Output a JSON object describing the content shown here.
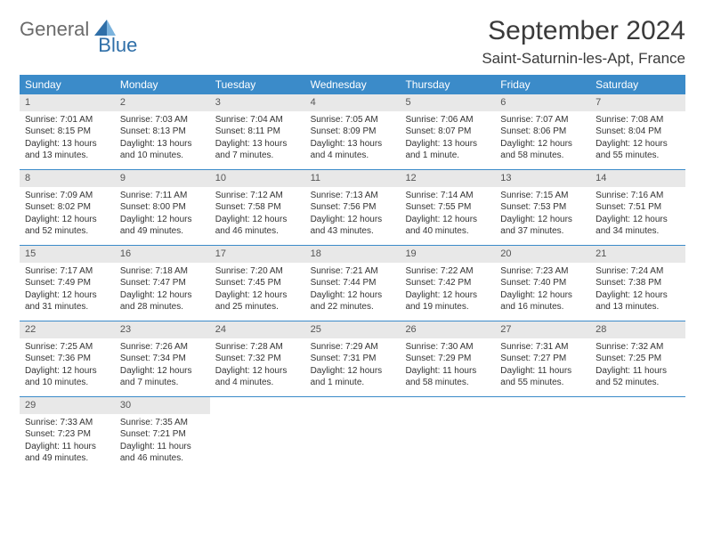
{
  "brand": {
    "part1": "General",
    "part2": "Blue"
  },
  "title": "September 2024",
  "location": "Saint-Saturnin-les-Apt, France",
  "colors": {
    "header_bg": "#3b8bc9",
    "header_text": "#ffffff",
    "daynum_bg": "#e8e8e8",
    "border": "#3b8bc9",
    "brand_gray": "#6b6b6b",
    "brand_blue": "#2f6fa8"
  },
  "weekdays": [
    "Sunday",
    "Monday",
    "Tuesday",
    "Wednesday",
    "Thursday",
    "Friday",
    "Saturday"
  ],
  "weeks": [
    [
      {
        "n": "1",
        "sr": "Sunrise: 7:01 AM",
        "ss": "Sunset: 8:15 PM",
        "d1": "Daylight: 13 hours",
        "d2": "and 13 minutes."
      },
      {
        "n": "2",
        "sr": "Sunrise: 7:03 AM",
        "ss": "Sunset: 8:13 PM",
        "d1": "Daylight: 13 hours",
        "d2": "and 10 minutes."
      },
      {
        "n": "3",
        "sr": "Sunrise: 7:04 AM",
        "ss": "Sunset: 8:11 PM",
        "d1": "Daylight: 13 hours",
        "d2": "and 7 minutes."
      },
      {
        "n": "4",
        "sr": "Sunrise: 7:05 AM",
        "ss": "Sunset: 8:09 PM",
        "d1": "Daylight: 13 hours",
        "d2": "and 4 minutes."
      },
      {
        "n": "5",
        "sr": "Sunrise: 7:06 AM",
        "ss": "Sunset: 8:07 PM",
        "d1": "Daylight: 13 hours",
        "d2": "and 1 minute."
      },
      {
        "n": "6",
        "sr": "Sunrise: 7:07 AM",
        "ss": "Sunset: 8:06 PM",
        "d1": "Daylight: 12 hours",
        "d2": "and 58 minutes."
      },
      {
        "n": "7",
        "sr": "Sunrise: 7:08 AM",
        "ss": "Sunset: 8:04 PM",
        "d1": "Daylight: 12 hours",
        "d2": "and 55 minutes."
      }
    ],
    [
      {
        "n": "8",
        "sr": "Sunrise: 7:09 AM",
        "ss": "Sunset: 8:02 PM",
        "d1": "Daylight: 12 hours",
        "d2": "and 52 minutes."
      },
      {
        "n": "9",
        "sr": "Sunrise: 7:11 AM",
        "ss": "Sunset: 8:00 PM",
        "d1": "Daylight: 12 hours",
        "d2": "and 49 minutes."
      },
      {
        "n": "10",
        "sr": "Sunrise: 7:12 AM",
        "ss": "Sunset: 7:58 PM",
        "d1": "Daylight: 12 hours",
        "d2": "and 46 minutes."
      },
      {
        "n": "11",
        "sr": "Sunrise: 7:13 AM",
        "ss": "Sunset: 7:56 PM",
        "d1": "Daylight: 12 hours",
        "d2": "and 43 minutes."
      },
      {
        "n": "12",
        "sr": "Sunrise: 7:14 AM",
        "ss": "Sunset: 7:55 PM",
        "d1": "Daylight: 12 hours",
        "d2": "and 40 minutes."
      },
      {
        "n": "13",
        "sr": "Sunrise: 7:15 AM",
        "ss": "Sunset: 7:53 PM",
        "d1": "Daylight: 12 hours",
        "d2": "and 37 minutes."
      },
      {
        "n": "14",
        "sr": "Sunrise: 7:16 AM",
        "ss": "Sunset: 7:51 PM",
        "d1": "Daylight: 12 hours",
        "d2": "and 34 minutes."
      }
    ],
    [
      {
        "n": "15",
        "sr": "Sunrise: 7:17 AM",
        "ss": "Sunset: 7:49 PM",
        "d1": "Daylight: 12 hours",
        "d2": "and 31 minutes."
      },
      {
        "n": "16",
        "sr": "Sunrise: 7:18 AM",
        "ss": "Sunset: 7:47 PM",
        "d1": "Daylight: 12 hours",
        "d2": "and 28 minutes."
      },
      {
        "n": "17",
        "sr": "Sunrise: 7:20 AM",
        "ss": "Sunset: 7:45 PM",
        "d1": "Daylight: 12 hours",
        "d2": "and 25 minutes."
      },
      {
        "n": "18",
        "sr": "Sunrise: 7:21 AM",
        "ss": "Sunset: 7:44 PM",
        "d1": "Daylight: 12 hours",
        "d2": "and 22 minutes."
      },
      {
        "n": "19",
        "sr": "Sunrise: 7:22 AM",
        "ss": "Sunset: 7:42 PM",
        "d1": "Daylight: 12 hours",
        "d2": "and 19 minutes."
      },
      {
        "n": "20",
        "sr": "Sunrise: 7:23 AM",
        "ss": "Sunset: 7:40 PM",
        "d1": "Daylight: 12 hours",
        "d2": "and 16 minutes."
      },
      {
        "n": "21",
        "sr": "Sunrise: 7:24 AM",
        "ss": "Sunset: 7:38 PM",
        "d1": "Daylight: 12 hours",
        "d2": "and 13 minutes."
      }
    ],
    [
      {
        "n": "22",
        "sr": "Sunrise: 7:25 AM",
        "ss": "Sunset: 7:36 PM",
        "d1": "Daylight: 12 hours",
        "d2": "and 10 minutes."
      },
      {
        "n": "23",
        "sr": "Sunrise: 7:26 AM",
        "ss": "Sunset: 7:34 PM",
        "d1": "Daylight: 12 hours",
        "d2": "and 7 minutes."
      },
      {
        "n": "24",
        "sr": "Sunrise: 7:28 AM",
        "ss": "Sunset: 7:32 PM",
        "d1": "Daylight: 12 hours",
        "d2": "and 4 minutes."
      },
      {
        "n": "25",
        "sr": "Sunrise: 7:29 AM",
        "ss": "Sunset: 7:31 PM",
        "d1": "Daylight: 12 hours",
        "d2": "and 1 minute."
      },
      {
        "n": "26",
        "sr": "Sunrise: 7:30 AM",
        "ss": "Sunset: 7:29 PM",
        "d1": "Daylight: 11 hours",
        "d2": "and 58 minutes."
      },
      {
        "n": "27",
        "sr": "Sunrise: 7:31 AM",
        "ss": "Sunset: 7:27 PM",
        "d1": "Daylight: 11 hours",
        "d2": "and 55 minutes."
      },
      {
        "n": "28",
        "sr": "Sunrise: 7:32 AM",
        "ss": "Sunset: 7:25 PM",
        "d1": "Daylight: 11 hours",
        "d2": "and 52 minutes."
      }
    ],
    [
      {
        "n": "29",
        "sr": "Sunrise: 7:33 AM",
        "ss": "Sunset: 7:23 PM",
        "d1": "Daylight: 11 hours",
        "d2": "and 49 minutes."
      },
      {
        "n": "30",
        "sr": "Sunrise: 7:35 AM",
        "ss": "Sunset: 7:21 PM",
        "d1": "Daylight: 11 hours",
        "d2": "and 46 minutes."
      },
      {
        "empty": true
      },
      {
        "empty": true
      },
      {
        "empty": true
      },
      {
        "empty": true
      },
      {
        "empty": true
      }
    ]
  ]
}
